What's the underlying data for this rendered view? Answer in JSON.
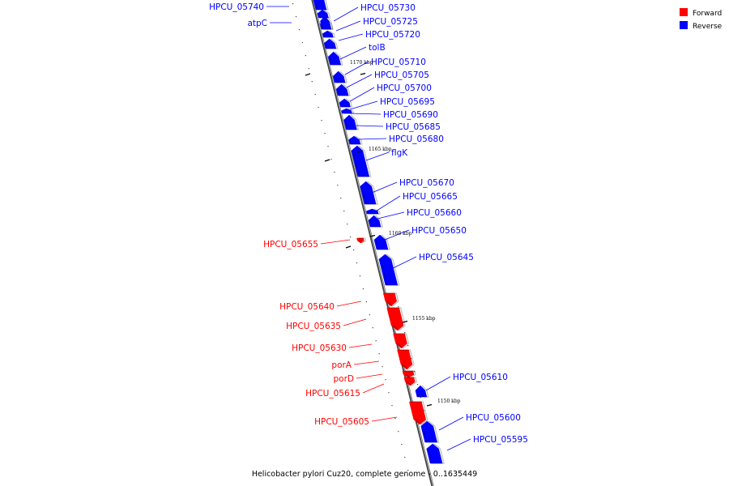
{
  "colors": {
    "forward": "#ff0000",
    "reverse": "#0000ff",
    "backbone": "#888888"
  },
  "legend": {
    "forward_label": "Forward",
    "reverse_label": "Reverse"
  },
  "caption": "Helicobacter pylori Cuz20, complete genome - 0..1635449",
  "ticks": [
    "1170 kbp",
    "1165 kbp",
    "1160 kbp",
    "1155 kbp",
    "1150 kbp"
  ],
  "genes": [
    {
      "label": "HPCU_05740",
      "strand": "reverse"
    },
    {
      "label": "atpC",
      "strand": "reverse"
    },
    {
      "label": "HPCU_05730",
      "strand": "reverse"
    },
    {
      "label": "HPCU_05725",
      "strand": "reverse"
    },
    {
      "label": "HPCU_05720",
      "strand": "reverse"
    },
    {
      "label": "tolB",
      "strand": "reverse"
    },
    {
      "label": "HPCU_05710",
      "strand": "reverse"
    },
    {
      "label": "HPCU_05705",
      "strand": "reverse"
    },
    {
      "label": "HPCU_05700",
      "strand": "reverse"
    },
    {
      "label": "HPCU_05695",
      "strand": "reverse"
    },
    {
      "label": "HPCU_05690",
      "strand": "reverse"
    },
    {
      "label": "HPCU_05685",
      "strand": "reverse"
    },
    {
      "label": "HPCU_05680",
      "strand": "reverse"
    },
    {
      "label": "flgK",
      "strand": "reverse"
    },
    {
      "label": "HPCU_05670",
      "strand": "reverse"
    },
    {
      "label": "HPCU_05665",
      "strand": "reverse"
    },
    {
      "label": "HPCU_05660",
      "strand": "reverse"
    },
    {
      "label": "HPCU_05650",
      "strand": "reverse"
    },
    {
      "label": "HPCU_05655",
      "strand": "forward"
    },
    {
      "label": "HPCU_05645",
      "strand": "reverse"
    },
    {
      "label": "HPCU_05640",
      "strand": "forward"
    },
    {
      "label": "HPCU_05635",
      "strand": "forward"
    },
    {
      "label": "HPCU_05630",
      "strand": "forward"
    },
    {
      "label": "porA",
      "strand": "forward"
    },
    {
      "label": "porD",
      "strand": "forward"
    },
    {
      "label": "HPCU_05615",
      "strand": "forward"
    },
    {
      "label": "HPCU_05610",
      "strand": "reverse"
    },
    {
      "label": "HPCU_05605",
      "strand": "forward"
    },
    {
      "label": "HPCU_05600",
      "strand": "reverse"
    },
    {
      "label": "HPCU_05595",
      "strand": "reverse"
    }
  ]
}
